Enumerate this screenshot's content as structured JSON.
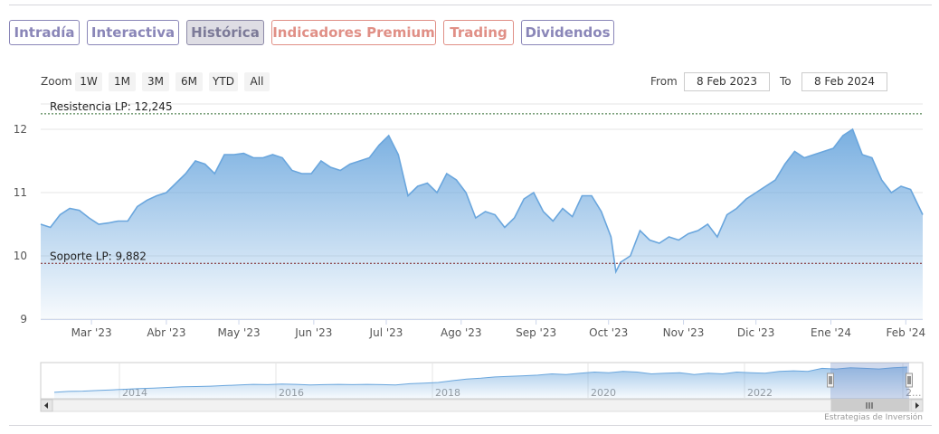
{
  "tabs": [
    {
      "label": "Intradía",
      "style": "purple"
    },
    {
      "label": "Interactiva",
      "style": "purple"
    },
    {
      "label": "Histórica",
      "style": "active"
    },
    {
      "label": "Indicadores Premium",
      "style": "salmon"
    },
    {
      "label": "Trading",
      "style": "salmon"
    },
    {
      "label": "Dividendos",
      "style": "purple"
    }
  ],
  "toolbar": {
    "zoom_label": "Zoom",
    "zoom_buttons": [
      "1W",
      "1M",
      "3M",
      "6M",
      "YTD",
      "All"
    ],
    "from_label": "From",
    "from_value": "8 Feb 2023",
    "to_label": "To",
    "to_value": "8 Feb 2024"
  },
  "credit": "Estrategias de Inversión",
  "colors": {
    "tab_purple": "#8a86b8",
    "tab_salmon": "#e08f86",
    "series_line": "#6aa6dd",
    "resistance_line": "#2d6a2d",
    "support_line": "#7a1f1f"
  },
  "navigator": {
    "year_labels": [
      "2014",
      "2016",
      "2018",
      "2020",
      "2022",
      "2..."
    ],
    "values": [
      0.12,
      0.15,
      0.16,
      0.18,
      0.2,
      0.22,
      0.24,
      0.26,
      0.28,
      0.3,
      0.31,
      0.32,
      0.34,
      0.36,
      0.38,
      0.37,
      0.39,
      0.38,
      0.36,
      0.37,
      0.38,
      0.37,
      0.38,
      0.37,
      0.36,
      0.4,
      0.42,
      0.44,
      0.5,
      0.55,
      0.58,
      0.62,
      0.64,
      0.66,
      0.68,
      0.72,
      0.7,
      0.74,
      0.78,
      0.76,
      0.8,
      0.78,
      0.72,
      0.74,
      0.76,
      0.7,
      0.74,
      0.72,
      0.78,
      0.76,
      0.74,
      0.8,
      0.82,
      0.8,
      0.9,
      0.88,
      0.92,
      0.9,
      0.88,
      0.92,
      0.94
    ]
  },
  "chart_data": {
    "type": "area",
    "x_start": "2023-02-08",
    "x_end": "2024-02-08",
    "ylim": [
      9,
      12.4
    ],
    "y_ticks": [
      9,
      10,
      11,
      12
    ],
    "x_ticks": [
      {
        "label": "Mar '23",
        "date": "2023-03-01"
      },
      {
        "label": "Abr '23",
        "date": "2023-04-01"
      },
      {
        "label": "May '23",
        "date": "2023-05-01"
      },
      {
        "label": "Jun '23",
        "date": "2023-06-01"
      },
      {
        "label": "Jul '23",
        "date": "2023-07-01"
      },
      {
        "label": "Ago '23",
        "date": "2023-08-01"
      },
      {
        "label": "Sep '23",
        "date": "2023-09-01"
      },
      {
        "label": "Oct '23",
        "date": "2023-10-01"
      },
      {
        "label": "Nov '23",
        "date": "2023-11-01"
      },
      {
        "label": "Dic '23",
        "date": "2023-12-01"
      },
      {
        "label": "Ene '24",
        "date": "2024-01-01"
      },
      {
        "label": "Feb '24",
        "date": "2024-02-01"
      }
    ],
    "plot_lines": [
      {
        "label": "Resistencia LP: 12,245",
        "value": 12.245,
        "color": "#2d6a2d"
      },
      {
        "label": "Soporte LP: 9,882",
        "value": 9.882,
        "color": "#7a1f1f"
      }
    ],
    "series": [
      {
        "x": [
          "2023-02-08",
          "2023-02-12",
          "2023-02-16",
          "2023-02-20",
          "2023-02-24",
          "2023-02-28",
          "2023-03-04",
          "2023-03-08",
          "2023-03-12",
          "2023-03-16",
          "2023-03-20",
          "2023-03-24",
          "2023-03-28",
          "2023-04-01",
          "2023-04-05",
          "2023-04-09",
          "2023-04-13",
          "2023-04-17",
          "2023-04-21",
          "2023-04-25",
          "2023-04-29",
          "2023-05-03",
          "2023-05-07",
          "2023-05-11",
          "2023-05-15",
          "2023-05-19",
          "2023-05-23",
          "2023-05-27",
          "2023-05-31",
          "2023-06-04",
          "2023-06-08",
          "2023-06-12",
          "2023-06-16",
          "2023-06-20",
          "2023-06-24",
          "2023-06-28",
          "2023-07-02",
          "2023-07-06",
          "2023-07-10",
          "2023-07-14",
          "2023-07-18",
          "2023-07-22",
          "2023-07-26",
          "2023-07-30",
          "2023-08-03",
          "2023-08-07",
          "2023-08-11",
          "2023-08-15",
          "2023-08-19",
          "2023-08-23",
          "2023-08-27",
          "2023-08-31",
          "2023-09-04",
          "2023-09-08",
          "2023-09-12",
          "2023-09-16",
          "2023-09-20",
          "2023-09-24",
          "2023-09-28",
          "2023-10-02",
          "2023-10-04",
          "2023-10-06",
          "2023-10-10",
          "2023-10-14",
          "2023-10-18",
          "2023-10-22",
          "2023-10-26",
          "2023-10-30",
          "2023-11-03",
          "2023-11-07",
          "2023-11-11",
          "2023-11-15",
          "2023-11-19",
          "2023-11-23",
          "2023-11-27",
          "2023-12-01",
          "2023-12-05",
          "2023-12-09",
          "2023-12-13",
          "2023-12-17",
          "2023-12-21",
          "2023-12-25",
          "2023-12-29",
          "2024-01-02",
          "2024-01-06",
          "2024-01-10",
          "2024-01-14",
          "2024-01-18",
          "2024-01-22",
          "2024-01-26",
          "2024-01-30",
          "2024-02-03",
          "2024-02-08"
        ],
        "values": [
          10.5,
          10.45,
          10.65,
          10.75,
          10.72,
          10.6,
          10.5,
          10.52,
          10.55,
          10.55,
          10.78,
          10.88,
          10.95,
          11.0,
          11.15,
          11.3,
          11.5,
          11.45,
          11.3,
          11.6,
          11.6,
          11.62,
          11.55,
          11.55,
          11.6,
          11.55,
          11.35,
          11.3,
          11.3,
          11.5,
          11.4,
          11.35,
          11.45,
          11.5,
          11.55,
          11.75,
          11.9,
          11.6,
          10.95,
          11.1,
          11.15,
          11.0,
          11.3,
          11.2,
          11.0,
          10.6,
          10.7,
          10.65,
          10.45,
          10.6,
          10.9,
          11.0,
          10.7,
          10.55,
          10.75,
          10.62,
          10.95,
          10.95,
          10.7,
          10.3,
          9.75,
          9.9,
          10.0,
          10.4,
          10.25,
          10.2,
          10.3,
          10.25,
          10.35,
          10.4,
          10.5,
          10.3,
          10.65,
          10.75,
          10.9,
          11.0,
          11.1,
          11.2,
          11.45,
          11.65,
          11.55,
          11.6,
          11.65,
          11.7,
          11.9,
          12.0,
          11.6,
          11.55,
          11.2,
          11.0,
          11.1,
          11.05,
          10.65
        ]
      }
    ]
  }
}
